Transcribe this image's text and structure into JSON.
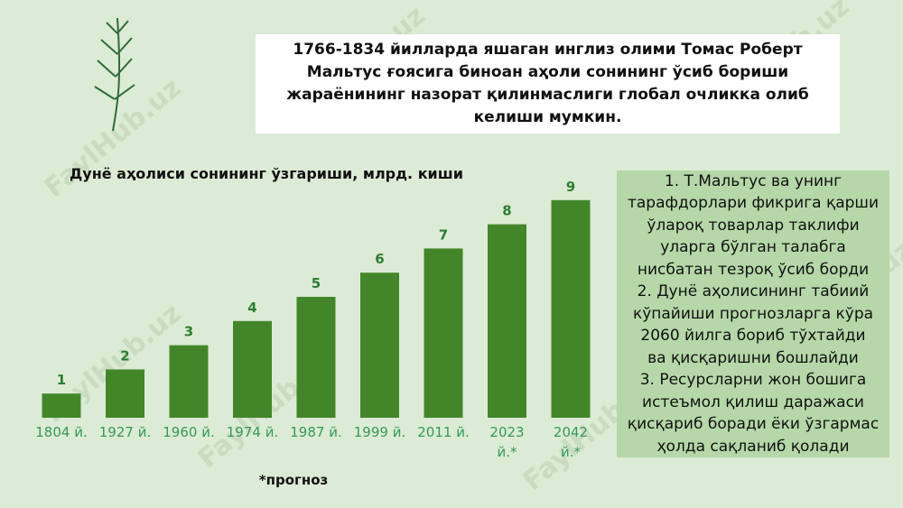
{
  "header_lines": [
    "1766-1834 йилларда яшаган инглиз олими Томас Роберт",
    "Мальтус ғоясига биноан аҳоли сонининг ўсиб бориши",
    "жараёнининг назорат қилинмаслиги глобал очликка олиб",
    "келиши мумкин."
  ],
  "notes_lines": [
    "1. Т.Мальтус ва унинг",
    "тарафдорлари фикрига қарши",
    "ўлароқ товарлар таклифи",
    "уларга бўлган талабга",
    "нисбатан тезроқ ўсиб борди",
    "2. Дунё аҳолисининг табиий",
    "кўпайиши прогнозларга кўра",
    "2060 йилга бориб тўхтайди",
    "ва қисқаришни бошлайди",
    "3. Ресурсларни жон бошига",
    "истеъмол қилиш даражаси",
    "қисқариб боради ёки ўзгармас",
    "ҳолда сақланиб қолади"
  ],
  "footnote": "*прогноз",
  "watermark": "FaylHub.uz",
  "chart_data": {
    "type": "bar",
    "title": "Дунё аҳолиси сонининг ўзгариши, млрд. киши",
    "categories": [
      "1804 й.",
      "1927 й.",
      "1960 й.",
      "1974 й.",
      "1987 й.",
      "1999 й.",
      "2011 й.",
      "2023 й.*",
      "2042 й.*"
    ],
    "values": [
      1,
      2,
      3,
      4,
      5,
      6,
      7,
      8,
      9
    ],
    "color": "#43862a"
  }
}
